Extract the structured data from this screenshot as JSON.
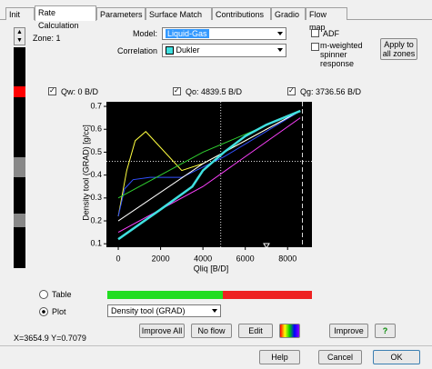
{
  "tabs": [
    "Init",
    "Rate Calculation",
    "Parameters",
    "Surface Match",
    "Contributions",
    "Gradio",
    "Flow map"
  ],
  "zone": "Zone:  1",
  "model": {
    "label": "Model:",
    "value": "Liquid-Gas"
  },
  "correlation": {
    "label": "Correlation",
    "value": "Dukler"
  },
  "options": {
    "adf": "ADF",
    "spinner": "m-weighted spinner response",
    "apply": "Apply to all zones"
  },
  "rates": {
    "qw": "Qw:  0 B/D",
    "qo": "Qo:  4839.5 B/D",
    "qg": "Qg:  3736.56 B/D"
  },
  "plot": {
    "x_label": "Qliq  [B/D]",
    "y_label": "Density tool (GRAD) [g/cc]",
    "xlim": [
      -560,
      9150
    ],
    "ylim": [
      0.085,
      0.72
    ],
    "xticks": [
      0,
      2000,
      4000,
      6000,
      8000
    ],
    "yticks": [
      0.1,
      0.2,
      0.3,
      0.4,
      0.5,
      0.6,
      0.7
    ],
    "reference_x": [
      4840,
      8700
    ],
    "reference_y": [
      0.46
    ],
    "series": [
      {
        "color": "#ffff40",
        "x": [
          0,
          400,
          800,
          1300,
          2000,
          3000,
          4000,
          6000,
          8600
        ],
        "values": [
          0.22,
          0.42,
          0.55,
          0.59,
          0.52,
          0.42,
          0.45,
          0.55,
          0.68
        ]
      },
      {
        "color": "#3050ff",
        "x": [
          0,
          300,
          700,
          1500,
          3000,
          5000,
          8600
        ],
        "values": [
          0.22,
          0.34,
          0.38,
          0.39,
          0.39,
          0.48,
          0.68
        ]
      },
      {
        "color": "#30d030",
        "x": [
          0,
          4000,
          8600
        ],
        "values": [
          0.3,
          0.5,
          0.68
        ]
      },
      {
        "color": "#ffffff",
        "x": [
          0,
          4000,
          8600
        ],
        "values": [
          0.2,
          0.45,
          0.68
        ]
      },
      {
        "color": "#ff40ff",
        "x": [
          0,
          4000,
          8600
        ],
        "values": [
          0.15,
          0.35,
          0.65
        ]
      },
      {
        "color": "#40e0e0",
        "x": [
          0,
          2000,
          3500,
          4000,
          5000,
          6000,
          7000,
          8600
        ],
        "values": [
          0.12,
          0.25,
          0.35,
          0.42,
          0.5,
          0.57,
          0.62,
          0.68
        ]
      }
    ]
  },
  "view": {
    "table": "Table",
    "plot": "Plot",
    "plot_select": "Density tool (GRAD)"
  },
  "buttons": {
    "improve_all": "Improve All",
    "no_flow": "No flow",
    "edit": "Edit",
    "improve": "Improve",
    "help_icon": "?"
  },
  "status": "X=3654.9 Y=0.7079",
  "footer": {
    "help": "Help",
    "cancel": "Cancel",
    "ok": "OK"
  }
}
